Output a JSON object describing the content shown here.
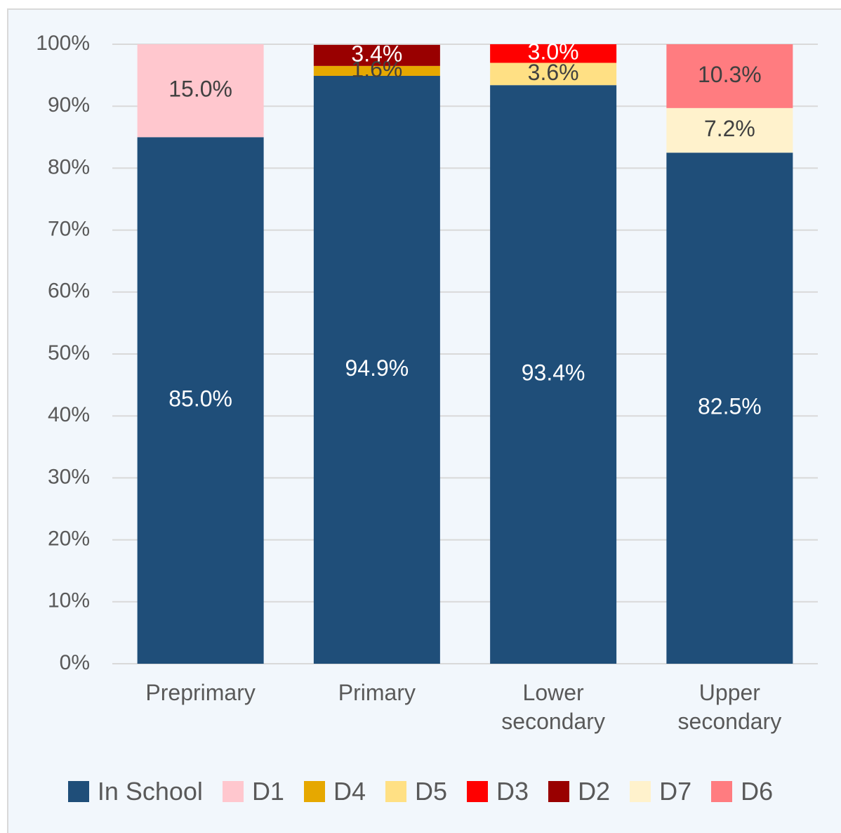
{
  "chart_data": {
    "type": "stacked_bar",
    "categories": [
      "Preprimary",
      "Primary",
      "Lower secondary",
      "Upper secondary"
    ],
    "series": [
      {
        "name": "In School",
        "color": "#1f4e79",
        "values": [
          85.0,
          94.9,
          93.4,
          82.5
        ],
        "value_labels": [
          "85.0%",
          "94.9%",
          "93.4%",
          "82.5%"
        ]
      },
      {
        "name": "D1",
        "color": "#ffc7ce",
        "values": [
          15.0,
          null,
          null,
          null
        ],
        "value_labels": [
          "15.0%",
          null,
          null,
          null
        ]
      },
      {
        "name": "D4",
        "color": "#e6a800",
        "values": [
          null,
          1.6,
          null,
          null
        ],
        "value_labels": [
          null,
          "1.6%",
          null,
          null
        ]
      },
      {
        "name": "D5",
        "color": "#ffe084",
        "values": [
          null,
          null,
          3.6,
          null
        ],
        "value_labels": [
          null,
          null,
          "3.6%",
          null
        ]
      },
      {
        "name": "D3",
        "color": "#ff0000",
        "values": [
          null,
          null,
          3.0,
          null
        ],
        "value_labels": [
          null,
          null,
          "3.0%",
          null
        ]
      },
      {
        "name": "D2",
        "color": "#990000",
        "values": [
          null,
          3.4,
          null,
          null
        ],
        "value_labels": [
          null,
          "3.4%",
          null,
          null
        ]
      },
      {
        "name": "D7",
        "color": "#fff2cc",
        "values": [
          null,
          null,
          null,
          7.2
        ],
        "value_labels": [
          null,
          null,
          null,
          "7.2%"
        ]
      },
      {
        "name": "D6",
        "color": "#ff7c80",
        "values": [
          null,
          null,
          null,
          10.3
        ],
        "value_labels": [
          null,
          null,
          null,
          "10.3%"
        ]
      }
    ],
    "ylim": [
      0,
      100
    ],
    "yticks": [
      {
        "value": 0,
        "label": "0%"
      },
      {
        "value": 10,
        "label": "10%"
      },
      {
        "value": 20,
        "label": "20%"
      },
      {
        "value": 30,
        "label": "30%"
      },
      {
        "value": 40,
        "label": "40%"
      },
      {
        "value": 50,
        "label": "50%"
      },
      {
        "value": 60,
        "label": "60%"
      },
      {
        "value": 70,
        "label": "70%"
      },
      {
        "value": 80,
        "label": "80%"
      },
      {
        "value": 90,
        "label": "90%"
      },
      {
        "value": 100,
        "label": "100%"
      }
    ],
    "grid": true,
    "legend": "bottom"
  }
}
